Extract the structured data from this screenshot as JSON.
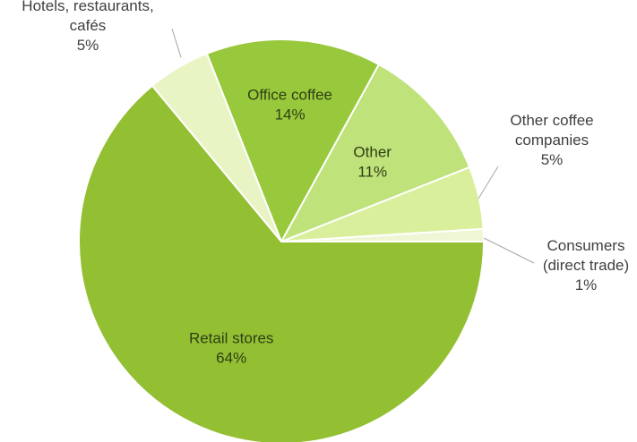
{
  "chart_data": {
    "type": "pie",
    "title": "",
    "slices": [
      {
        "label": "Consumers (direct trade)",
        "label_lines": [
          "Consumers",
          "(direct trade)",
          "1%"
        ],
        "value": 1,
        "color": "#eef6d6"
      },
      {
        "label": "Other coffee companies",
        "label_lines": [
          "Other coffee",
          "companies",
          "5%"
        ],
        "value": 5,
        "color": "#d9ef9c"
      },
      {
        "label": "Other",
        "label_lines": [
          "Other",
          "11%"
        ],
        "value": 11,
        "color": "#bfe27a"
      },
      {
        "label": "Office coffee",
        "label_lines": [
          "Office coffee",
          "14%"
        ],
        "value": 14,
        "color": "#98c93c"
      },
      {
        "label": "Hotels, restaurants, cafés",
        "label_lines": [
          "Hotels, restaurants,",
          "cafés",
          "5%"
        ],
        "value": 5,
        "color": "#e8f4c4"
      },
      {
        "label": "Retail stores",
        "label_lines": [
          "Retail stores",
          "64%"
        ],
        "value": 64,
        "color": "#93bf33"
      }
    ],
    "start_angle_deg": 0,
    "direction": "counterclockwise",
    "legend": "none",
    "data_labels": "category name and percentage"
  }
}
